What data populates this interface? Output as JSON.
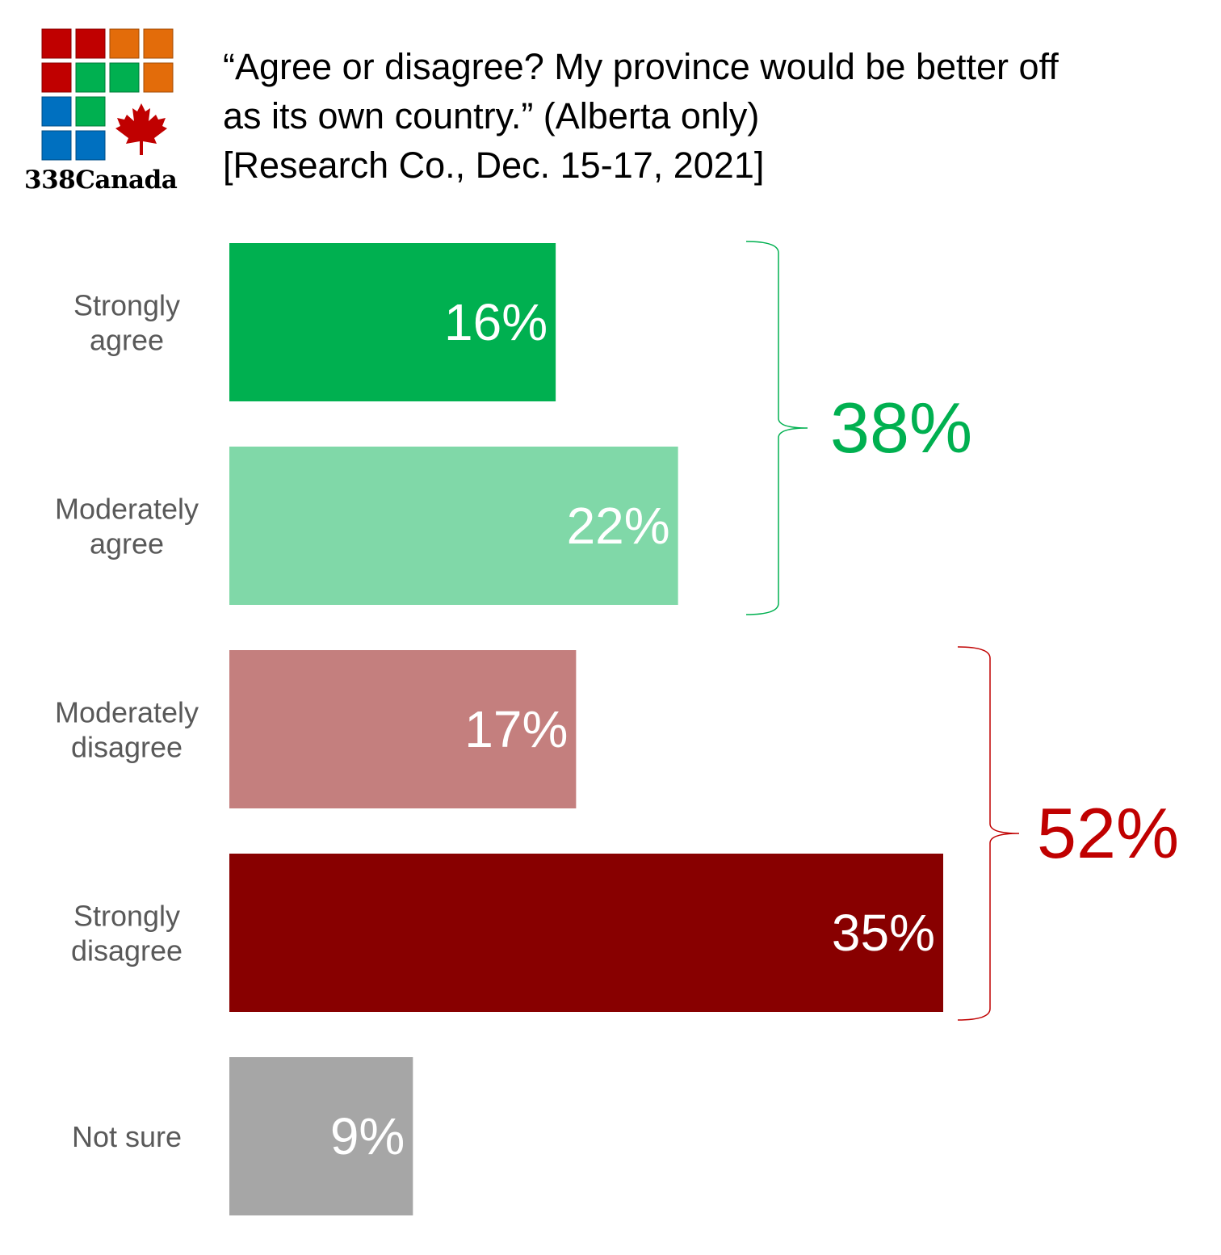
{
  "header": {
    "logo_text": "338Canada",
    "title_lines": [
      "“Agree or disagree? My province would be better off",
      "as its own country.” (Alberta only)",
      "[Research Co., Dec. 15-17, 2021]"
    ]
  },
  "colors": {
    "strongly_agree": "#00b050",
    "moderately_agree": "#80d8a8",
    "moderately_disagree": "#c47f7e",
    "strongly_disagree": "#880000",
    "not_sure": "#a6a6a6",
    "agree_total": "#00b050",
    "disagree_total": "#c00000",
    "category_label": "#595959",
    "value_label": "#ffffff"
  },
  "chart_data": {
    "type": "bar",
    "orientation": "horizontal",
    "categories": [
      [
        "Strongly",
        "agree"
      ],
      [
        "Moderately",
        "agree"
      ],
      [
        "Moderately",
        "disagree"
      ],
      [
        "Strongly",
        "disagree"
      ],
      [
        "Not sure"
      ]
    ],
    "values": [
      16,
      22,
      17,
      35,
      9
    ],
    "value_labels": [
      "16%",
      "22%",
      "17%",
      "35%",
      "9%"
    ],
    "xlim": [
      0,
      35
    ],
    "grid": false,
    "groups": [
      {
        "label": "38%",
        "value": 38,
        "categories": [
          0,
          1
        ]
      },
      {
        "label": "52%",
        "value": 52,
        "categories": [
          2,
          3
        ]
      }
    ]
  }
}
